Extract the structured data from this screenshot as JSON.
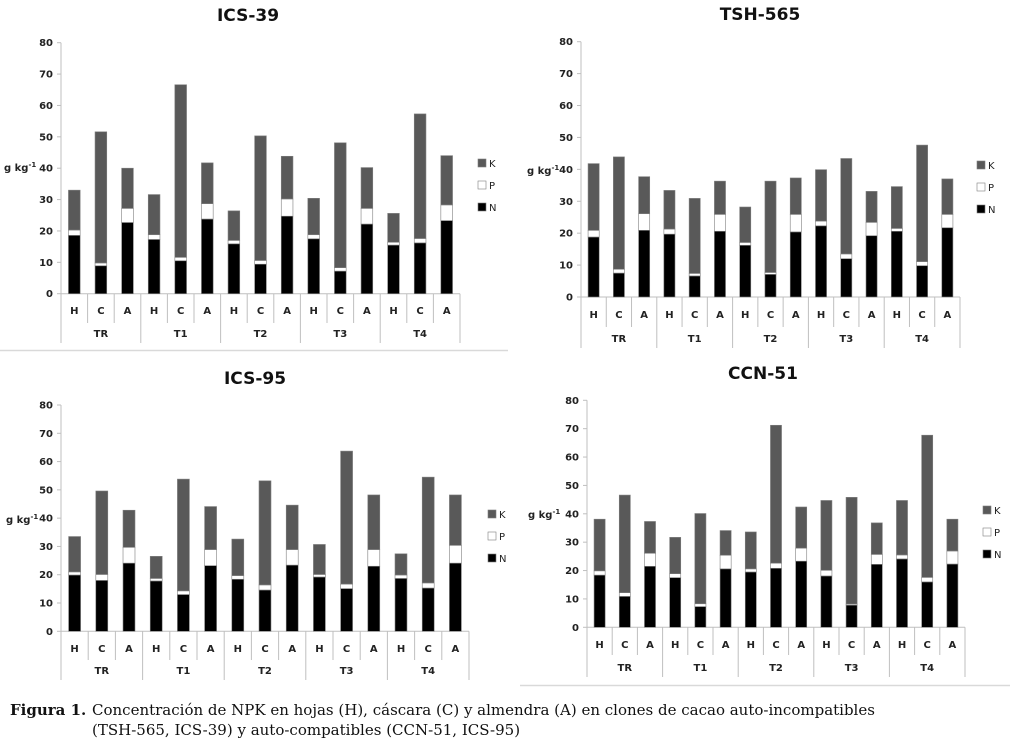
{
  "colors": {
    "N": "#000000",
    "P": "#ffffff",
    "K": "#595959",
    "axis": "#bfbfbf",
    "separator": "#d9d9d9"
  },
  "caption": {
    "label": "Figura 1.",
    "line1": "Concentración de NPK en hojas (H), cáscara (C) y almendra (A) en clones de cacao auto-incompatibles",
    "line2": "(TSH-565, ICS-39) y auto-compatibles (CCN-51, ICS-95)"
  },
  "chart_data": [
    {
      "type": "bar",
      "stacked": true,
      "title": "ICS-39",
      "ylabel": "g kg-1",
      "ylabel_main": "g kg",
      "ylabel_sup": "-1",
      "ylim": [
        0,
        80
      ],
      "yticks": [
        "0",
        "10",
        "20",
        "30",
        "40",
        "50",
        "60",
        "70",
        "80"
      ],
      "groups": [
        "TR",
        "T1",
        "T2",
        "T3",
        "T4"
      ],
      "subcategories": [
        "H",
        "C",
        "A"
      ],
      "legend": [
        "K",
        "P",
        "N"
      ],
      "legend_position": "right",
      "series": [
        {
          "name": "N",
          "values": [
            18.6,
            8.9,
            22.7,
            17.3,
            10.5,
            23.8,
            15.9,
            9.4,
            24.7,
            17.5,
            7.2,
            22.2,
            15.5,
            16.2,
            23.3
          ]
        },
        {
          "name": "P",
          "values": [
            1.7,
            0.9,
            4.5,
            1.5,
            1.1,
            4.9,
            1.1,
            1.2,
            5.5,
            1.3,
            1.1,
            5.0,
            0.9,
            1.4,
            5.0
          ]
        },
        {
          "name": "K",
          "values": [
            12.7,
            41.8,
            12.8,
            12.8,
            55.0,
            13.0,
            9.4,
            39.7,
            13.6,
            11.6,
            39.8,
            13.0,
            9.2,
            39.7,
            15.7
          ]
        }
      ]
    },
    {
      "type": "bar",
      "stacked": true,
      "title": "TSH-565",
      "ylabel": "g kg-1",
      "ylabel_main": "g kg",
      "ylabel_sup": "-1",
      "ylim": [
        0,
        80
      ],
      "yticks": [
        "0",
        "10",
        "20",
        "30",
        "40",
        "50",
        "60",
        "70",
        "80"
      ],
      "groups": [
        "TR",
        "T1",
        "T2",
        "T3",
        "T4"
      ],
      "subcategories": [
        "H",
        "C",
        "A"
      ],
      "legend": [
        "K",
        "P",
        "N"
      ],
      "legend_position": "right",
      "series": [
        {
          "name": "N",
          "values": [
            18.8,
            7.5,
            20.9,
            19.7,
            6.6,
            20.6,
            16.2,
            7.1,
            20.4,
            22.3,
            12.0,
            19.2,
            20.6,
            9.8,
            21.7
          ]
        },
        {
          "name": "P",
          "values": [
            2.1,
            1.2,
            5.2,
            1.6,
            0.8,
            5.3,
            0.9,
            0.6,
            5.5,
            1.5,
            1.5,
            4.2,
            0.9,
            1.3,
            4.2
          ]
        },
        {
          "name": "K",
          "values": [
            20.9,
            35.2,
            11.6,
            12.1,
            23.5,
            10.4,
            11.1,
            28.6,
            11.4,
            16.1,
            29.9,
            9.7,
            13.1,
            36.5,
            11.1
          ]
        }
      ]
    },
    {
      "type": "bar",
      "stacked": true,
      "title": "ICS-95",
      "ylabel": "g kg-1",
      "ylabel_main": "g kg",
      "ylabel_sup": "-1",
      "ylim": [
        0,
        80
      ],
      "yticks": [
        "0",
        "10",
        "20",
        "30",
        "40",
        "50",
        "60",
        "70",
        "80"
      ],
      "groups": [
        "TR",
        "T1",
        "T2",
        "T3",
        "T4"
      ],
      "subcategories": [
        "H",
        "C",
        "A"
      ],
      "legend": [
        "K",
        "P",
        "N"
      ],
      "legend_position": "right",
      "series": [
        {
          "name": "N",
          "values": [
            19.9,
            18.0,
            24.1,
            17.8,
            13.0,
            23.2,
            18.4,
            14.6,
            23.4,
            19.2,
            15.1,
            23.0,
            18.7,
            15.3,
            24.1
          ]
        },
        {
          "name": "P",
          "values": [
            1.1,
            2.1,
            5.6,
            0.9,
            1.3,
            5.7,
            1.3,
            1.8,
            5.5,
            0.9,
            1.6,
            5.9,
            1.2,
            1.8,
            6.3
          ]
        },
        {
          "name": "K",
          "values": [
            12.5,
            29.5,
            13.1,
            7.8,
            39.5,
            15.2,
            12.9,
            36.8,
            15.7,
            10.6,
            47.0,
            19.3,
            7.5,
            37.4,
            17.8
          ]
        }
      ]
    },
    {
      "type": "bar",
      "stacked": true,
      "title": "CCN-51",
      "ylabel": "g kg-1",
      "ylabel_main": "g kg",
      "ylabel_sup": "-1",
      "ylim": [
        0,
        80
      ],
      "yticks": [
        "0",
        "10",
        "20",
        "30",
        "40",
        "50",
        "60",
        "70",
        "80"
      ],
      "groups": [
        "TR",
        "T1",
        "T2",
        "T3",
        "T4"
      ],
      "subcategories": [
        "H",
        "C",
        "A"
      ],
      "legend": [
        "K",
        "P",
        "N"
      ],
      "legend_position": "right",
      "series": [
        {
          "name": "N",
          "values": [
            18.4,
            10.9,
            21.5,
            17.5,
            7.3,
            20.6,
            19.5,
            20.8,
            23.3,
            18.1,
            7.8,
            22.2,
            24.1,
            16.0,
            22.3
          ]
        },
        {
          "name": "P",
          "values": [
            1.5,
            1.3,
            4.6,
            1.4,
            1.0,
            4.8,
            1.1,
            1.8,
            4.6,
            2.0,
            0.4,
            3.5,
            1.4,
            1.6,
            4.6
          ]
        },
        {
          "name": "K",
          "values": [
            18.2,
            34.4,
            11.2,
            12.8,
            31.8,
            8.7,
            13.0,
            48.6,
            14.5,
            24.6,
            37.6,
            11.1,
            19.2,
            50.1,
            11.2
          ]
        }
      ]
    }
  ]
}
